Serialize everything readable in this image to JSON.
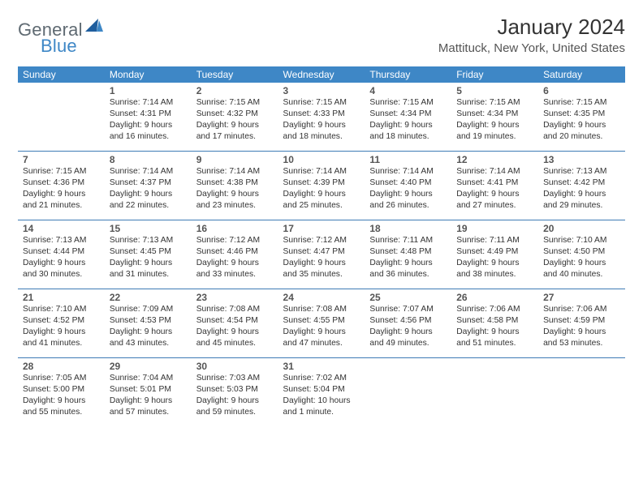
{
  "logo": {
    "text1": "General",
    "text2": "Blue",
    "color1": "#5f6a72",
    "color2": "#3e87c6"
  },
  "title": "January 2024",
  "location": "Mattituck, New York, United States",
  "theme": {
    "header_bg": "#3e87c6",
    "header_fg": "#ffffff",
    "row_border": "#3e7bb5",
    "text_color": "#333333",
    "daynum_color": "#555555",
    "font_family": "Arial, Helvetica, sans-serif"
  },
  "weekdays": [
    "Sunday",
    "Monday",
    "Tuesday",
    "Wednesday",
    "Thursday",
    "Friday",
    "Saturday"
  ],
  "weeks": [
    [
      null,
      {
        "n": "1",
        "sr": "Sunrise: 7:14 AM",
        "ss": "Sunset: 4:31 PM",
        "dl": "Daylight: 9 hours and 16 minutes."
      },
      {
        "n": "2",
        "sr": "Sunrise: 7:15 AM",
        "ss": "Sunset: 4:32 PM",
        "dl": "Daylight: 9 hours and 17 minutes."
      },
      {
        "n": "3",
        "sr": "Sunrise: 7:15 AM",
        "ss": "Sunset: 4:33 PM",
        "dl": "Daylight: 9 hours and 18 minutes."
      },
      {
        "n": "4",
        "sr": "Sunrise: 7:15 AM",
        "ss": "Sunset: 4:34 PM",
        "dl": "Daylight: 9 hours and 18 minutes."
      },
      {
        "n": "5",
        "sr": "Sunrise: 7:15 AM",
        "ss": "Sunset: 4:34 PM",
        "dl": "Daylight: 9 hours and 19 minutes."
      },
      {
        "n": "6",
        "sr": "Sunrise: 7:15 AM",
        "ss": "Sunset: 4:35 PM",
        "dl": "Daylight: 9 hours and 20 minutes."
      }
    ],
    [
      {
        "n": "7",
        "sr": "Sunrise: 7:15 AM",
        "ss": "Sunset: 4:36 PM",
        "dl": "Daylight: 9 hours and 21 minutes."
      },
      {
        "n": "8",
        "sr": "Sunrise: 7:14 AM",
        "ss": "Sunset: 4:37 PM",
        "dl": "Daylight: 9 hours and 22 minutes."
      },
      {
        "n": "9",
        "sr": "Sunrise: 7:14 AM",
        "ss": "Sunset: 4:38 PM",
        "dl": "Daylight: 9 hours and 23 minutes."
      },
      {
        "n": "10",
        "sr": "Sunrise: 7:14 AM",
        "ss": "Sunset: 4:39 PM",
        "dl": "Daylight: 9 hours and 25 minutes."
      },
      {
        "n": "11",
        "sr": "Sunrise: 7:14 AM",
        "ss": "Sunset: 4:40 PM",
        "dl": "Daylight: 9 hours and 26 minutes."
      },
      {
        "n": "12",
        "sr": "Sunrise: 7:14 AM",
        "ss": "Sunset: 4:41 PM",
        "dl": "Daylight: 9 hours and 27 minutes."
      },
      {
        "n": "13",
        "sr": "Sunrise: 7:13 AM",
        "ss": "Sunset: 4:42 PM",
        "dl": "Daylight: 9 hours and 29 minutes."
      }
    ],
    [
      {
        "n": "14",
        "sr": "Sunrise: 7:13 AM",
        "ss": "Sunset: 4:44 PM",
        "dl": "Daylight: 9 hours and 30 minutes."
      },
      {
        "n": "15",
        "sr": "Sunrise: 7:13 AM",
        "ss": "Sunset: 4:45 PM",
        "dl": "Daylight: 9 hours and 31 minutes."
      },
      {
        "n": "16",
        "sr": "Sunrise: 7:12 AM",
        "ss": "Sunset: 4:46 PM",
        "dl": "Daylight: 9 hours and 33 minutes."
      },
      {
        "n": "17",
        "sr": "Sunrise: 7:12 AM",
        "ss": "Sunset: 4:47 PM",
        "dl": "Daylight: 9 hours and 35 minutes."
      },
      {
        "n": "18",
        "sr": "Sunrise: 7:11 AM",
        "ss": "Sunset: 4:48 PM",
        "dl": "Daylight: 9 hours and 36 minutes."
      },
      {
        "n": "19",
        "sr": "Sunrise: 7:11 AM",
        "ss": "Sunset: 4:49 PM",
        "dl": "Daylight: 9 hours and 38 minutes."
      },
      {
        "n": "20",
        "sr": "Sunrise: 7:10 AM",
        "ss": "Sunset: 4:50 PM",
        "dl": "Daylight: 9 hours and 40 minutes."
      }
    ],
    [
      {
        "n": "21",
        "sr": "Sunrise: 7:10 AM",
        "ss": "Sunset: 4:52 PM",
        "dl": "Daylight: 9 hours and 41 minutes."
      },
      {
        "n": "22",
        "sr": "Sunrise: 7:09 AM",
        "ss": "Sunset: 4:53 PM",
        "dl": "Daylight: 9 hours and 43 minutes."
      },
      {
        "n": "23",
        "sr": "Sunrise: 7:08 AM",
        "ss": "Sunset: 4:54 PM",
        "dl": "Daylight: 9 hours and 45 minutes."
      },
      {
        "n": "24",
        "sr": "Sunrise: 7:08 AM",
        "ss": "Sunset: 4:55 PM",
        "dl": "Daylight: 9 hours and 47 minutes."
      },
      {
        "n": "25",
        "sr": "Sunrise: 7:07 AM",
        "ss": "Sunset: 4:56 PM",
        "dl": "Daylight: 9 hours and 49 minutes."
      },
      {
        "n": "26",
        "sr": "Sunrise: 7:06 AM",
        "ss": "Sunset: 4:58 PM",
        "dl": "Daylight: 9 hours and 51 minutes."
      },
      {
        "n": "27",
        "sr": "Sunrise: 7:06 AM",
        "ss": "Sunset: 4:59 PM",
        "dl": "Daylight: 9 hours and 53 minutes."
      }
    ],
    [
      {
        "n": "28",
        "sr": "Sunrise: 7:05 AM",
        "ss": "Sunset: 5:00 PM",
        "dl": "Daylight: 9 hours and 55 minutes."
      },
      {
        "n": "29",
        "sr": "Sunrise: 7:04 AM",
        "ss": "Sunset: 5:01 PM",
        "dl": "Daylight: 9 hours and 57 minutes."
      },
      {
        "n": "30",
        "sr": "Sunrise: 7:03 AM",
        "ss": "Sunset: 5:03 PM",
        "dl": "Daylight: 9 hours and 59 minutes."
      },
      {
        "n": "31",
        "sr": "Sunrise: 7:02 AM",
        "ss": "Sunset: 5:04 PM",
        "dl": "Daylight: 10 hours and 1 minute."
      },
      null,
      null,
      null
    ]
  ]
}
